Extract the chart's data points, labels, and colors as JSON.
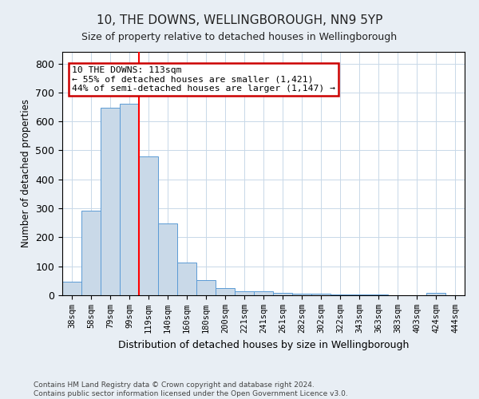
{
  "title1": "10, THE DOWNS, WELLINGBOROUGH, NN9 5YP",
  "title2": "Size of property relative to detached houses in Wellingborough",
  "xlabel": "Distribution of detached houses by size in Wellingborough",
  "ylabel": "Number of detached properties",
  "categories": [
    "38sqm",
    "58sqm",
    "79sqm",
    "99sqm",
    "119sqm",
    "140sqm",
    "160sqm",
    "180sqm",
    "200sqm",
    "221sqm",
    "241sqm",
    "261sqm",
    "282sqm",
    "302sqm",
    "322sqm",
    "343sqm",
    "363sqm",
    "383sqm",
    "403sqm",
    "424sqm",
    "444sqm"
  ],
  "values": [
    47,
    293,
    648,
    660,
    478,
    248,
    114,
    52,
    25,
    15,
    13,
    8,
    5,
    5,
    3,
    3,
    2,
    1,
    0,
    7,
    0
  ],
  "bar_color": "#c9d9e8",
  "bar_edge_color": "#5b9bd5",
  "red_line_index": 3,
  "annotation_text": "10 THE DOWNS: 113sqm\n← 55% of detached houses are smaller (1,421)\n44% of semi-detached houses are larger (1,147) →",
  "annotation_box_color": "#ffffff",
  "annotation_box_edge": "#cc0000",
  "ylim": [
    0,
    840
  ],
  "yticks": [
    0,
    100,
    200,
    300,
    400,
    500,
    600,
    700,
    800
  ],
  "footer_text": "Contains HM Land Registry data © Crown copyright and database right 2024.\nContains public sector information licensed under the Open Government Licence v3.0.",
  "background_color": "#e8eef4",
  "plot_bg_color": "#ffffff",
  "grid_color": "#c8d8e8"
}
